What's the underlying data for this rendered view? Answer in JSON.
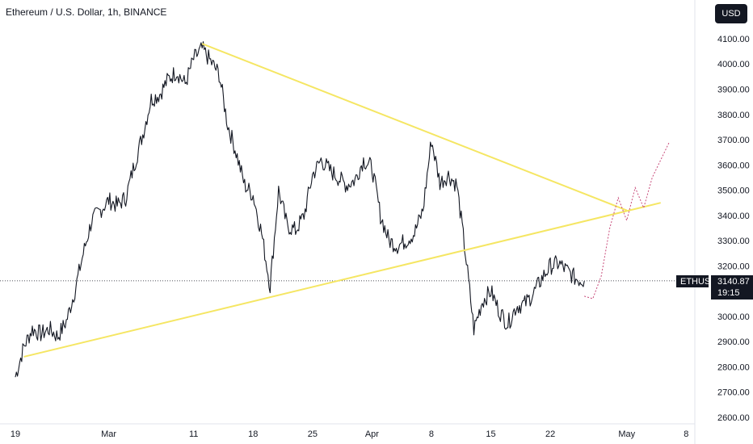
{
  "header": {
    "title": "Ethereum / U.S. Dollar, 1h, BINANCE"
  },
  "price_scale": {
    "currency_button": "USD"
  },
  "colors": {
    "background": "#ffffff",
    "candles": "#131722",
    "trendlines": "#f5e663",
    "projection": "#c84b7a",
    "price_tag": "#131722",
    "grid": "none"
  },
  "symbol_tag": {
    "symbol": "ETHUSD",
    "price": "3140.87",
    "countdown": "19:15"
  },
  "chart_data": {
    "type": "line",
    "title": "Ethereum / U.S. Dollar, 1h, BINANCE",
    "xlabel": "",
    "ylabel": "",
    "grid": false,
    "ylim": [
      2600,
      4100
    ],
    "x_range": [
      "2024-02-19",
      "2024-05-08"
    ],
    "y_ticks": [
      "4100.00",
      "4000.00",
      "3900.00",
      "3800.00",
      "3700.00",
      "3600.00",
      "3500.00",
      "3400.00",
      "3300.00",
      "3200.00",
      "3100.00",
      "3000.00",
      "2900.00",
      "2800.00",
      "2700.00",
      "2600.00"
    ],
    "x_ticks": [
      {
        "label": "19",
        "date": "2024-02-19"
      },
      {
        "label": "Mar",
        "date": "2024-03-01"
      },
      {
        "label": "11",
        "date": "2024-03-11"
      },
      {
        "label": "18",
        "date": "2024-03-18"
      },
      {
        "label": "25",
        "date": "2024-03-25"
      },
      {
        "label": "Apr",
        "date": "2024-04-01"
      },
      {
        "label": "8",
        "date": "2024-04-08"
      },
      {
        "label": "15",
        "date": "2024-04-15"
      },
      {
        "label": "22",
        "date": "2024-04-22"
      },
      {
        "label": "May",
        "date": "2024-05-01"
      },
      {
        "label": "8",
        "date": "2024-05-08"
      }
    ],
    "series": [
      {
        "values": [
          [
            "2024-02-19",
            2760
          ],
          [
            "2024-02-20",
            2880
          ],
          [
            "2024-02-21",
            2950
          ],
          [
            "2024-02-22",
            2930
          ],
          [
            "2024-02-23",
            2950
          ],
          [
            "2024-02-24",
            2920
          ],
          [
            "2024-02-25",
            2980
          ],
          [
            "2024-02-26",
            3100
          ],
          [
            "2024-02-27",
            3250
          ],
          [
            "2024-02-28",
            3380
          ],
          [
            "2024-02-29",
            3420
          ],
          [
            "2024-03-01",
            3460
          ],
          [
            "2024-03-02",
            3440
          ],
          [
            "2024-03-03",
            3470
          ],
          [
            "2024-03-04",
            3600
          ],
          [
            "2024-03-05",
            3720
          ],
          [
            "2024-03-06",
            3860
          ],
          [
            "2024-03-07",
            3880
          ],
          [
            "2024-03-08",
            3940
          ],
          [
            "2024-03-09",
            3970
          ],
          [
            "2024-03-10",
            3920
          ],
          [
            "2024-03-11",
            4020
          ],
          [
            "2024-03-12",
            4060
          ],
          [
            "2024-03-13",
            4010
          ],
          [
            "2024-03-14",
            3960
          ],
          [
            "2024-03-15",
            3760
          ],
          [
            "2024-03-16",
            3650
          ],
          [
            "2024-03-17",
            3520
          ],
          [
            "2024-03-18",
            3480
          ],
          [
            "2024-03-19",
            3330
          ],
          [
            "2024-03-20",
            3120
          ],
          [
            "2024-03-21",
            3500
          ],
          [
            "2024-03-22",
            3360
          ],
          [
            "2024-03-23",
            3340
          ],
          [
            "2024-03-24",
            3400
          ],
          [
            "2024-03-25",
            3560
          ],
          [
            "2024-03-26",
            3620
          ],
          [
            "2024-03-27",
            3580
          ],
          [
            "2024-03-28",
            3550
          ],
          [
            "2024-03-29",
            3520
          ],
          [
            "2024-03-30",
            3540
          ],
          [
            "2024-03-31",
            3620
          ],
          [
            "2024-04-01",
            3590
          ],
          [
            "2024-04-02",
            3400
          ],
          [
            "2024-04-03",
            3300
          ],
          [
            "2024-04-04",
            3280
          ],
          [
            "2024-04-05",
            3300
          ],
          [
            "2024-04-06",
            3330
          ],
          [
            "2024-04-07",
            3420
          ],
          [
            "2024-04-08",
            3700
          ],
          [
            "2024-04-09",
            3530
          ],
          [
            "2024-04-10",
            3560
          ],
          [
            "2024-04-11",
            3520
          ],
          [
            "2024-04-12",
            3250
          ],
          [
            "2024-04-13",
            2950
          ],
          [
            "2024-04-14",
            3060
          ],
          [
            "2024-04-15",
            3100
          ],
          [
            "2024-04-16",
            3020
          ],
          [
            "2024-04-17",
            2970
          ],
          [
            "2024-04-18",
            3040
          ],
          [
            "2024-04-19",
            3050
          ],
          [
            "2024-04-20",
            3090
          ],
          [
            "2024-04-21",
            3150
          ],
          [
            "2024-04-22",
            3200
          ],
          [
            "2024-04-23",
            3210
          ],
          [
            "2024-04-24",
            3180
          ],
          [
            "2024-04-25",
            3150
          ],
          [
            "2024-04-26",
            3140
          ]
        ]
      },
      {
        "values": [
          [
            "2024-03-12",
            4080
          ],
          [
            "2024-05-01",
            3420
          ]
        ]
      },
      {
        "values": [
          [
            "2024-02-20",
            2840
          ],
          [
            "2024-05-05",
            3450
          ]
        ]
      },
      {
        "values": [
          [
            "2024-04-26",
            3080
          ],
          [
            "2024-04-27",
            3070
          ],
          [
            "2024-04-28",
            3160
          ],
          [
            "2024-04-29",
            3350
          ],
          [
            "2024-04-30",
            3470
          ],
          [
            "2024-05-01",
            3380
          ],
          [
            "2024-05-02",
            3510
          ],
          [
            "2024-05-03",
            3430
          ],
          [
            "2024-05-04",
            3550
          ],
          [
            "2024-05-06",
            3690
          ]
        ]
      }
    ]
  }
}
